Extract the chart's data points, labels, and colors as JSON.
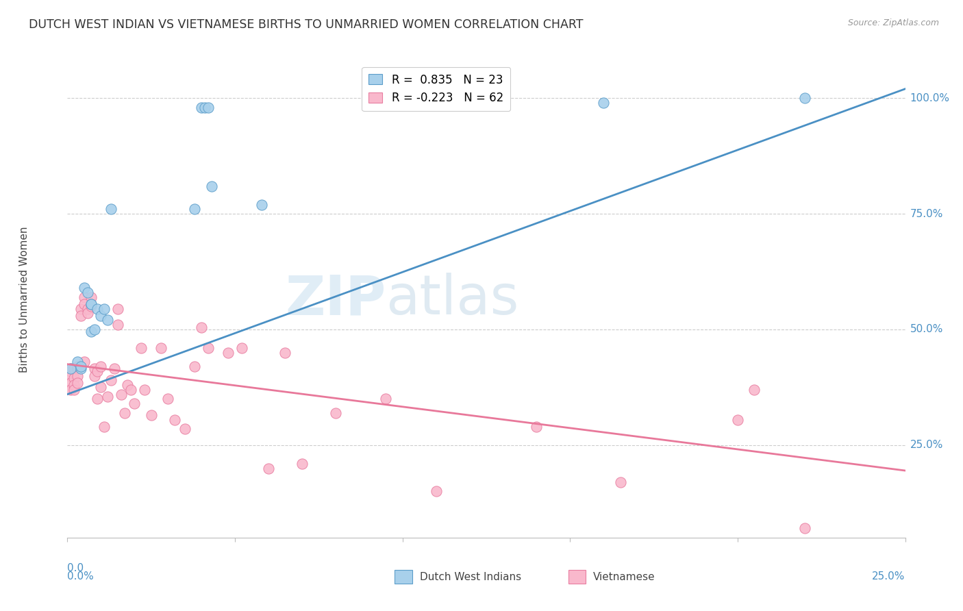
{
  "title": "DUTCH WEST INDIAN VS VIETNAMESE BIRTHS TO UNMARRIED WOMEN CORRELATION CHART",
  "source": "Source: ZipAtlas.com",
  "ylabel": "Births to Unmarried Women",
  "yticks": [
    0.25,
    0.5,
    0.75,
    1.0
  ],
  "ytick_labels": [
    "25.0%",
    "50.0%",
    "75.0%",
    "100.0%"
  ],
  "xlim": [
    0.0,
    0.25
  ],
  "ylim": [
    0.05,
    1.08
  ],
  "legend_r1_label": "R =  0.835   N = 23",
  "legend_r2_label": "R = -0.223   N = 62",
  "blue_fill": "#a8d0eb",
  "blue_edge": "#5b9dc9",
  "pink_fill": "#f9b8cc",
  "pink_edge": "#e87da0",
  "blue_line": "#4a90c4",
  "pink_line": "#e8789a",
  "watermark_zip": "ZIP",
  "watermark_atlas": "atlas",
  "blue_points_x": [
    0.001,
    0.003,
    0.004,
    0.004,
    0.005,
    0.006,
    0.007,
    0.007,
    0.007,
    0.008,
    0.009,
    0.01,
    0.011,
    0.012,
    0.013,
    0.038,
    0.04,
    0.041,
    0.042,
    0.043,
    0.058,
    0.16,
    0.22
  ],
  "blue_points_y": [
    0.415,
    0.43,
    0.415,
    0.42,
    0.59,
    0.58,
    0.555,
    0.555,
    0.495,
    0.5,
    0.545,
    0.53,
    0.545,
    0.52,
    0.76,
    0.76,
    0.98,
    0.98,
    0.98,
    0.81,
    0.77,
    0.99,
    1.0
  ],
  "pink_points_x": [
    0.001,
    0.001,
    0.001,
    0.001,
    0.001,
    0.002,
    0.002,
    0.002,
    0.002,
    0.003,
    0.003,
    0.003,
    0.003,
    0.004,
    0.004,
    0.005,
    0.005,
    0.005,
    0.006,
    0.006,
    0.007,
    0.007,
    0.008,
    0.008,
    0.009,
    0.009,
    0.01,
    0.01,
    0.011,
    0.012,
    0.013,
    0.014,
    0.015,
    0.015,
    0.016,
    0.017,
    0.018,
    0.019,
    0.02,
    0.022,
    0.023,
    0.025,
    0.028,
    0.03,
    0.032,
    0.035,
    0.038,
    0.04,
    0.042,
    0.048,
    0.052,
    0.06,
    0.065,
    0.07,
    0.08,
    0.095,
    0.11,
    0.14,
    0.165,
    0.2,
    0.205,
    0.22
  ],
  "pink_points_y": [
    0.415,
    0.41,
    0.4,
    0.385,
    0.37,
    0.415,
    0.395,
    0.38,
    0.37,
    0.42,
    0.415,
    0.4,
    0.385,
    0.545,
    0.53,
    0.43,
    0.57,
    0.555,
    0.545,
    0.535,
    0.55,
    0.57,
    0.415,
    0.4,
    0.41,
    0.35,
    0.42,
    0.375,
    0.29,
    0.355,
    0.39,
    0.415,
    0.545,
    0.51,
    0.36,
    0.32,
    0.38,
    0.37,
    0.34,
    0.46,
    0.37,
    0.315,
    0.46,
    0.35,
    0.305,
    0.285,
    0.42,
    0.505,
    0.46,
    0.45,
    0.46,
    0.2,
    0.45,
    0.21,
    0.32,
    0.35,
    0.15,
    0.29,
    0.17,
    0.305,
    0.37,
    0.07
  ],
  "blue_trend_x": [
    0.0,
    0.25
  ],
  "blue_trend_y": [
    0.36,
    1.02
  ],
  "pink_trend_x": [
    0.0,
    0.25
  ],
  "pink_trend_y": [
    0.425,
    0.195
  ]
}
